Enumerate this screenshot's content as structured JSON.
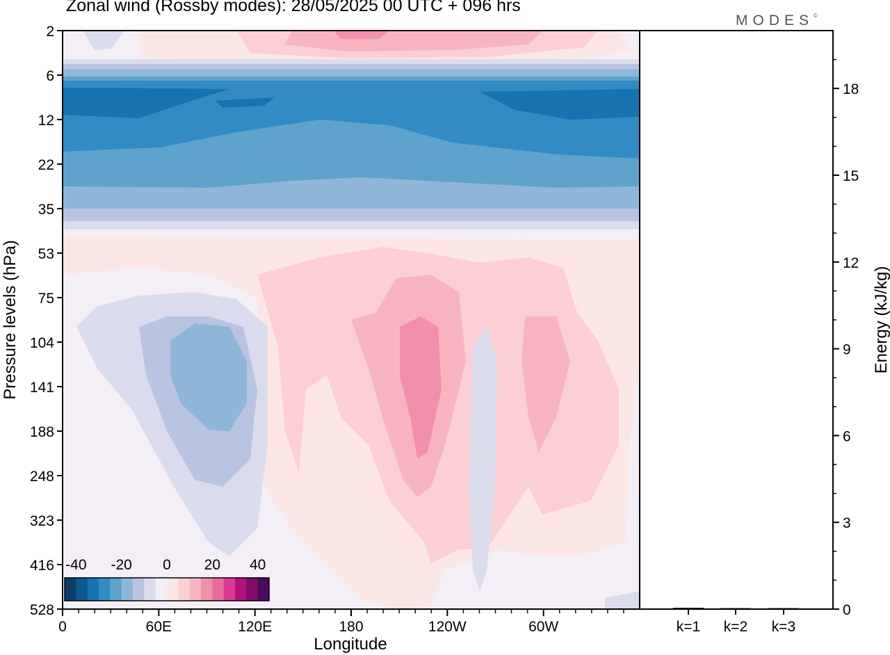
{
  "header": {
    "title": "Zonal wind (Rossby modes):  28/05/2025  00 UTC  + 096 hrs",
    "logo": "MODES",
    "logo_mark": "©"
  },
  "chart_data": [
    {
      "type": "heatmap",
      "title": "Zonal wind (Rossby modes):  28/05/2025  00 UTC  + 096 hrs",
      "xlabel": "Longitude",
      "ylabel": "Pressure levels (hPa)",
      "x_ticks": [
        "0",
        "60E",
        "120E",
        "180",
        "120W",
        "60W"
      ],
      "y_ticks": [
        "2",
        "6",
        "12",
        "22",
        "35",
        "53",
        "75",
        "104",
        "141",
        "188",
        "248",
        "323",
        "416",
        "528"
      ],
      "y_scale": "log",
      "colorbar": {
        "tick_labels": [
          "-40",
          "-20",
          "0",
          "20",
          "40"
        ],
        "min": -45,
        "max": 45,
        "step": 5,
        "colors": [
          "#0b3d66",
          "#0d5a8f",
          "#1673b0",
          "#338bc3",
          "#5ea3cc",
          "#8fb6d8",
          "#b9c4e0",
          "#dadcee",
          "#f3eff6",
          "#fde6e6",
          "#fbcfd4",
          "#f7b4bf",
          "#f28fab",
          "#ea6aa0",
          "#d93a93",
          "#b3137c",
          "#820a6a",
          "#4a0a5e"
        ]
      },
      "features": [
        {
          "region": "upper stratosphere 2-4 hPa",
          "value": 10
        },
        {
          "region": "easterly jet 6-30 hPa",
          "value": -35
        },
        {
          "region": "negative anomaly near 90E, 100-190 hPa",
          "value": -20
        },
        {
          "region": "positive anomaly near 110W, 110-190 hPa",
          "value": 20
        },
        {
          "region": "positive anomaly near 55W, 100-190 hPa",
          "value": 15
        },
        {
          "region": "negative anomaly near 95W, 150-400 hPa",
          "value": -5
        }
      ]
    },
    {
      "type": "bar",
      "ylabel": "Energy (kJ/kg)",
      "categories": [
        "k=1",
        "k=2",
        "k=3"
      ],
      "values": [
        0.02,
        0.01,
        0.01
      ],
      "ylim": [
        0,
        20
      ],
      "y_ticks": [
        "0",
        "3",
        "6",
        "9",
        "12",
        "15",
        "18"
      ]
    }
  ]
}
